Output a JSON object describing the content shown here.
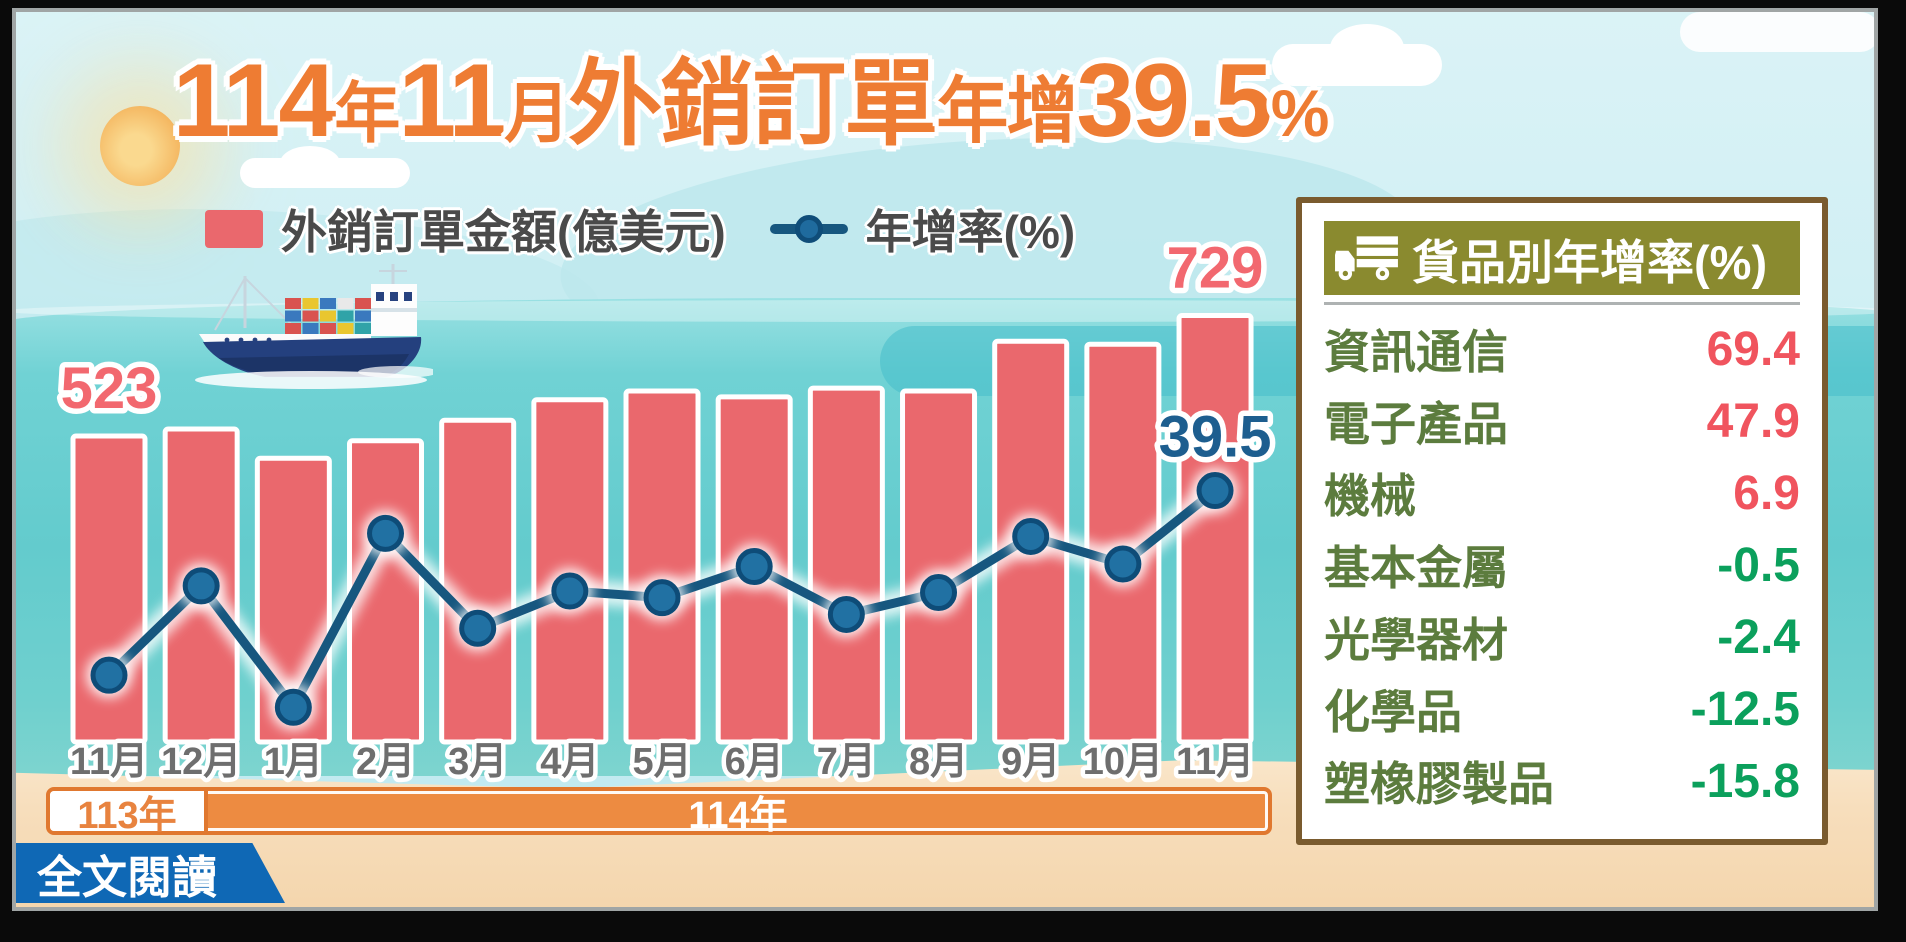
{
  "title": {
    "full": "114年11月外銷訂單年增39.5%",
    "parts": [
      {
        "text": "114",
        "size": "num"
      },
      {
        "text": "年",
        "size": "small"
      },
      {
        "text": "11",
        "size": "num"
      },
      {
        "text": "月",
        "size": "small"
      },
      {
        "text": "外銷訂單",
        "size": "large"
      },
      {
        "text": "年增",
        "size": "mid"
      },
      {
        "text": "39.5",
        "size": "num"
      },
      {
        "text": "%",
        "size": "small"
      }
    ]
  },
  "legend": {
    "items": [
      {
        "kind": "bar",
        "label": "外銷訂單金額(億美元)"
      },
      {
        "kind": "line",
        "label": "年增率(%)"
      }
    ]
  },
  "chart_data": {
    "type": "bar+line",
    "title": "114年11月外銷訂單年增39.5%",
    "categories": [
      "11月",
      "12月",
      "1月",
      "2月",
      "3月",
      "4月",
      "5月",
      "6月",
      "7月",
      "8月",
      "9月",
      "10月",
      "11月"
    ],
    "x_groups": [
      {
        "label": "113年",
        "from": "11月",
        "to": "12月"
      },
      {
        "label": "114年",
        "from": "1月",
        "to": "11月"
      }
    ],
    "series": [
      {
        "name": "外銷訂單金額(億美元)",
        "type": "bar",
        "color": "#EA686D",
        "values": [
          523,
          535,
          485,
          515,
          550,
          585,
          600,
          590,
          605,
          600,
          685,
          680,
          729
        ],
        "value_labels": [
          "523",
          "",
          "",
          "",
          "",
          "",
          "",
          "",
          "",
          "",
          "",
          "",
          "729"
        ]
      },
      {
        "name": "年增率(%)",
        "type": "line",
        "color": "#17577F",
        "values": [
          3.3,
          20.8,
          -3.0,
          31.1,
          12.5,
          19.8,
          18.5,
          24.6,
          15.2,
          19.5,
          30.5,
          25.1,
          39.5
        ],
        "value_labels": [
          "",
          "",
          "",
          "",
          "",
          "",
          "",
          "",
          "",
          "",
          "",
          "",
          "39.5"
        ]
      }
    ],
    "legend_position": "top",
    "grid": false
  },
  "panel": {
    "title": "貨品別年增率(%)",
    "icon": "truck-icon",
    "rows": [
      {
        "label": "資訊通信",
        "value": "69.4",
        "direction": "positive"
      },
      {
        "label": "電子產品",
        "value": "47.9",
        "direction": "positive"
      },
      {
        "label": "機械",
        "value": "6.9",
        "direction": "positive"
      },
      {
        "label": "基本金屬",
        "value": "-0.5",
        "direction": "negative"
      },
      {
        "label": "光學器材",
        "value": "-2.4",
        "direction": "negative"
      },
      {
        "label": "化學品",
        "value": "-12.5",
        "direction": "negative"
      },
      {
        "label": "塑橡膠製品",
        "value": "-15.8",
        "direction": "negative"
      }
    ]
  },
  "footer": {
    "year_band_left": "113年",
    "year_band_right": "114年",
    "read_more_label": "全文閱讀"
  },
  "colors": {
    "title_orange": "#EE7C33",
    "bar_pink": "#EA686D",
    "line_navy": "#17577F",
    "positive_red": "#F0545E",
    "negative_green": "#0BA05C",
    "panel_olive": "#8A8A2F",
    "band_orange": "#ED8B41",
    "button_blue": "#0F68B5"
  }
}
